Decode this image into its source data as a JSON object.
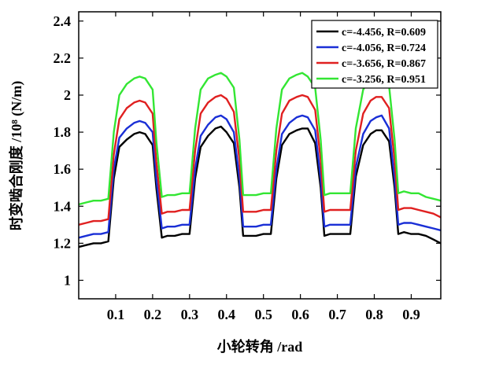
{
  "chart_data": {
    "type": "line",
    "title": "",
    "xlabel": "小轮转角 /rad",
    "ylabel": "时变啮合刚度 /10⁸ (N/m)",
    "xlim": [
      0.0,
      0.98
    ],
    "ylim": [
      0.9,
      2.45
    ],
    "x_ticks": [
      0.1,
      0.2,
      0.3,
      0.4,
      0.5,
      0.6,
      0.7,
      0.8,
      0.9
    ],
    "x_tick_labels": [
      "0.1",
      "0.2",
      "0.3",
      "0.4",
      "0.5",
      "0.6",
      "0.7",
      "0.8",
      "0.9"
    ],
    "y_ticks": [
      1.0,
      1.2,
      1.4,
      1.6,
      1.8,
      2.0,
      2.2,
      2.4
    ],
    "y_tick_labels": [
      "1",
      "1.2",
      "1.4",
      "1.6",
      "1.8",
      "2",
      "2.2",
      "2.4"
    ],
    "grid": false,
    "legend_position": "top-right",
    "x": [
      0.0,
      0.02,
      0.04,
      0.06,
      0.08,
      0.095,
      0.11,
      0.13,
      0.15,
      0.165,
      0.18,
      0.2,
      0.21,
      0.225,
      0.24,
      0.26,
      0.28,
      0.3,
      0.315,
      0.33,
      0.35,
      0.37,
      0.385,
      0.4,
      0.42,
      0.435,
      0.445,
      0.46,
      0.48,
      0.5,
      0.52,
      0.535,
      0.55,
      0.57,
      0.59,
      0.605,
      0.62,
      0.64,
      0.655,
      0.665,
      0.68,
      0.7,
      0.72,
      0.735,
      0.75,
      0.77,
      0.79,
      0.805,
      0.82,
      0.84,
      0.855,
      0.865,
      0.88,
      0.9,
      0.92,
      0.94,
      0.96,
      0.98
    ],
    "series": [
      {
        "name": "c=-4.456, R=0.609",
        "color": "#000000",
        "values": [
          1.18,
          1.19,
          1.2,
          1.2,
          1.21,
          1.55,
          1.72,
          1.76,
          1.79,
          1.8,
          1.79,
          1.73,
          1.5,
          1.23,
          1.24,
          1.24,
          1.25,
          1.25,
          1.55,
          1.72,
          1.78,
          1.82,
          1.83,
          1.8,
          1.74,
          1.5,
          1.24,
          1.24,
          1.24,
          1.25,
          1.25,
          1.55,
          1.73,
          1.79,
          1.81,
          1.82,
          1.82,
          1.74,
          1.5,
          1.24,
          1.25,
          1.25,
          1.25,
          1.25,
          1.56,
          1.73,
          1.79,
          1.81,
          1.81,
          1.75,
          1.5,
          1.25,
          1.26,
          1.25,
          1.25,
          1.24,
          1.22,
          1.2
        ]
      },
      {
        "name": "c=-4.056, R=0.724",
        "color": "#1a2fd6",
        "values": [
          1.23,
          1.24,
          1.25,
          1.25,
          1.26,
          1.6,
          1.77,
          1.82,
          1.85,
          1.86,
          1.85,
          1.8,
          1.55,
          1.28,
          1.29,
          1.29,
          1.3,
          1.3,
          1.6,
          1.78,
          1.84,
          1.88,
          1.89,
          1.87,
          1.8,
          1.55,
          1.29,
          1.29,
          1.29,
          1.3,
          1.3,
          1.6,
          1.79,
          1.85,
          1.88,
          1.89,
          1.88,
          1.81,
          1.55,
          1.29,
          1.3,
          1.3,
          1.3,
          1.3,
          1.61,
          1.79,
          1.86,
          1.88,
          1.89,
          1.82,
          1.55,
          1.3,
          1.31,
          1.31,
          1.3,
          1.29,
          1.28,
          1.27
        ]
      },
      {
        "name": "c=-3.656, R=0.867",
        "color": "#e02020",
        "values": [
          1.3,
          1.31,
          1.32,
          1.32,
          1.33,
          1.68,
          1.87,
          1.93,
          1.96,
          1.97,
          1.96,
          1.9,
          1.64,
          1.36,
          1.37,
          1.37,
          1.38,
          1.38,
          1.7,
          1.9,
          1.96,
          1.99,
          2.0,
          1.98,
          1.91,
          1.65,
          1.37,
          1.37,
          1.37,
          1.38,
          1.38,
          1.7,
          1.9,
          1.97,
          1.99,
          2.0,
          1.99,
          1.92,
          1.65,
          1.37,
          1.38,
          1.38,
          1.38,
          1.38,
          1.7,
          1.9,
          1.97,
          1.99,
          1.99,
          1.93,
          1.65,
          1.38,
          1.39,
          1.39,
          1.38,
          1.37,
          1.36,
          1.34
        ]
      },
      {
        "name": "c=-3.256, R=0.951",
        "color": "#33e633",
        "values": [
          1.41,
          1.42,
          1.43,
          1.43,
          1.44,
          1.8,
          2.0,
          2.06,
          2.09,
          2.1,
          2.09,
          2.03,
          1.75,
          1.45,
          1.46,
          1.46,
          1.47,
          1.47,
          1.82,
          2.03,
          2.09,
          2.11,
          2.12,
          2.1,
          2.04,
          1.76,
          1.46,
          1.46,
          1.46,
          1.47,
          1.47,
          1.82,
          2.03,
          2.09,
          2.11,
          2.12,
          2.1,
          2.04,
          1.76,
          1.46,
          1.47,
          1.47,
          1.47,
          1.47,
          1.82,
          2.03,
          2.09,
          2.11,
          2.11,
          2.05,
          1.76,
          1.47,
          1.48,
          1.47,
          1.47,
          1.45,
          1.44,
          1.43
        ]
      }
    ]
  }
}
